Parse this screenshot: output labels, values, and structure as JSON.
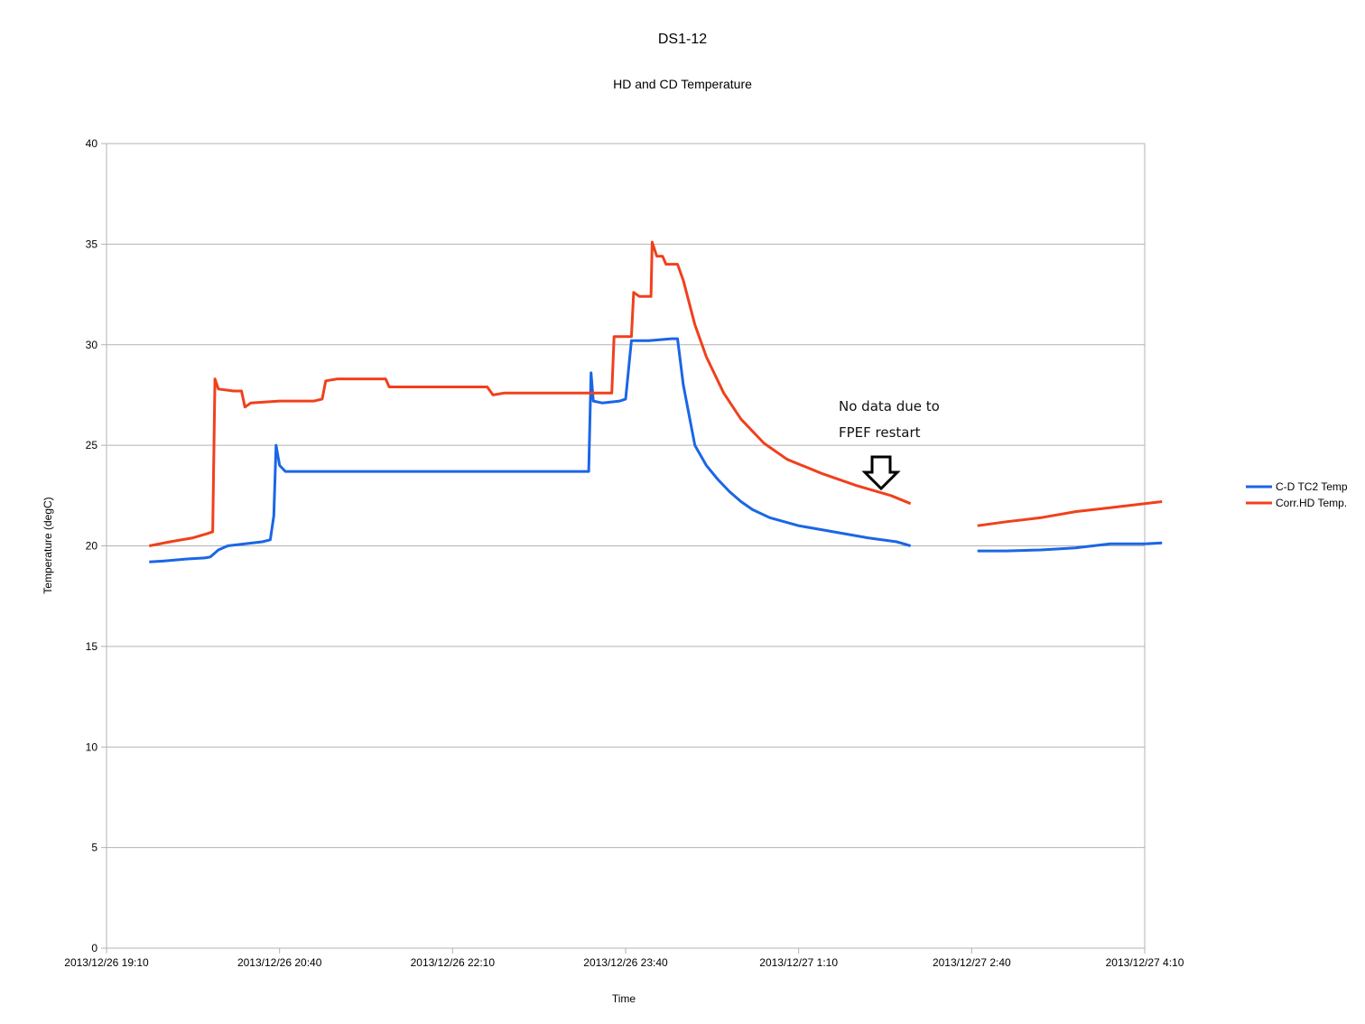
{
  "chart_data": {
    "type": "line",
    "title": "DS1-12",
    "subtitle": "HD and CD Temperature",
    "xlabel": "Time",
    "ylabel": "Temperature (degC)",
    "ylim": [
      0,
      40
    ],
    "yticks": [
      0,
      5,
      10,
      15,
      20,
      25,
      30,
      35,
      40
    ],
    "xlim_hours": [
      0,
      9
    ],
    "xtick_labels": [
      "2013/12/26 19:10",
      "2013/12/26 20:40",
      "2013/12/26 22:10",
      "2013/12/26 23:40",
      "2013/12/27 1:10",
      "2013/12/27 2:40",
      "2013/12/27 4:10"
    ],
    "grid": "horizontal",
    "legend_position": "right",
    "annotation": {
      "line1": "No data due to",
      "line2": "FPEF restart",
      "arrow": "down-arrow-icon"
    },
    "x_unit": "hours after 2013/12/26 19:10",
    "series": [
      {
        "name": "C-D TC2 Temp",
        "color": "#1a66e6",
        "points": [
          [
            0.37,
            19.2
          ],
          [
            0.5,
            19.25
          ],
          [
            0.7,
            19.35
          ],
          [
            0.85,
            19.4
          ],
          [
            0.9,
            19.45
          ],
          [
            0.97,
            19.8
          ],
          [
            1.05,
            20.0
          ],
          [
            1.2,
            20.1
          ],
          [
            1.35,
            20.2
          ],
          [
            1.42,
            20.3
          ],
          [
            1.45,
            21.5
          ],
          [
            1.47,
            25.0
          ],
          [
            1.5,
            24.0
          ],
          [
            1.55,
            23.7
          ],
          [
            1.7,
            23.7
          ],
          [
            2.0,
            23.7
          ],
          [
            2.5,
            23.7
          ],
          [
            3.0,
            23.7
          ],
          [
            3.5,
            23.7
          ],
          [
            4.0,
            23.7
          ],
          [
            4.18,
            23.7
          ],
          [
            4.2,
            28.6
          ],
          [
            4.22,
            27.2
          ],
          [
            4.3,
            27.1
          ],
          [
            4.45,
            27.2
          ],
          [
            4.5,
            27.3
          ],
          [
            4.55,
            30.2
          ],
          [
            4.7,
            30.2
          ],
          [
            4.9,
            30.3
          ],
          [
            4.95,
            30.3
          ],
          [
            5.0,
            28.0
          ],
          [
            5.05,
            26.5
          ],
          [
            5.1,
            25.0
          ],
          [
            5.2,
            24.0
          ],
          [
            5.3,
            23.3
          ],
          [
            5.4,
            22.7
          ],
          [
            5.5,
            22.2
          ],
          [
            5.6,
            21.8
          ],
          [
            5.75,
            21.4
          ],
          [
            6.0,
            21.0
          ],
          [
            6.3,
            20.7
          ],
          [
            6.6,
            20.4
          ],
          [
            6.85,
            20.2
          ],
          [
            6.97,
            20.0
          ]
        ]
      },
      {
        "name": "Corr.HD Temp.",
        "color": "#f0401c",
        "points": [
          [
            0.37,
            20.0
          ],
          [
            0.55,
            20.2
          ],
          [
            0.75,
            20.4
          ],
          [
            0.87,
            20.6
          ],
          [
            0.92,
            20.7
          ],
          [
            0.94,
            28.3
          ],
          [
            0.97,
            27.8
          ],
          [
            1.1,
            27.7
          ],
          [
            1.17,
            27.7
          ],
          [
            1.2,
            26.9
          ],
          [
            1.25,
            27.1
          ],
          [
            1.5,
            27.2
          ],
          [
            1.8,
            27.2
          ],
          [
            1.87,
            27.3
          ],
          [
            1.9,
            28.2
          ],
          [
            2.0,
            28.3
          ],
          [
            2.3,
            28.3
          ],
          [
            2.42,
            28.3
          ],
          [
            2.45,
            27.9
          ],
          [
            2.6,
            27.9
          ],
          [
            3.0,
            27.9
          ],
          [
            3.3,
            27.9
          ],
          [
            3.35,
            27.5
          ],
          [
            3.45,
            27.6
          ],
          [
            3.8,
            27.6
          ],
          [
            4.15,
            27.6
          ],
          [
            4.38,
            27.6
          ],
          [
            4.4,
            30.4
          ],
          [
            4.55,
            30.4
          ],
          [
            4.57,
            32.6
          ],
          [
            4.62,
            32.4
          ],
          [
            4.72,
            32.4
          ],
          [
            4.73,
            35.1
          ],
          [
            4.77,
            34.4
          ],
          [
            4.82,
            34.4
          ],
          [
            4.85,
            34.0
          ],
          [
            4.95,
            34.0
          ],
          [
            5.0,
            33.2
          ],
          [
            5.1,
            31.0
          ],
          [
            5.2,
            29.4
          ],
          [
            5.35,
            27.6
          ],
          [
            5.5,
            26.3
          ],
          [
            5.7,
            25.1
          ],
          [
            5.9,
            24.3
          ],
          [
            6.2,
            23.6
          ],
          [
            6.5,
            23.0
          ],
          [
            6.8,
            22.5
          ],
          [
            6.97,
            22.1
          ]
        ]
      },
      {
        "name": "C-D TC2 Temp",
        "color": "#1a66e6",
        "points": [
          [
            7.55,
            19.75
          ],
          [
            7.8,
            19.75
          ],
          [
            8.1,
            19.8
          ],
          [
            8.4,
            19.9
          ],
          [
            8.7,
            20.1
          ],
          [
            9.0,
            20.1
          ],
          [
            9.15,
            20.15
          ]
        ]
      },
      {
        "name": "Corr.HD Temp.",
        "color": "#f0401c",
        "points": [
          [
            7.55,
            21.0
          ],
          [
            7.8,
            21.2
          ],
          [
            8.1,
            21.4
          ],
          [
            8.4,
            21.7
          ],
          [
            8.7,
            21.9
          ],
          [
            9.0,
            22.1
          ],
          [
            9.15,
            22.2
          ]
        ]
      }
    ],
    "legend": [
      {
        "label": "C-D TC2 Temp",
        "color": "#1a66e6"
      },
      {
        "label": "Corr.HD Temp.",
        "color": "#f0401c"
      }
    ]
  }
}
